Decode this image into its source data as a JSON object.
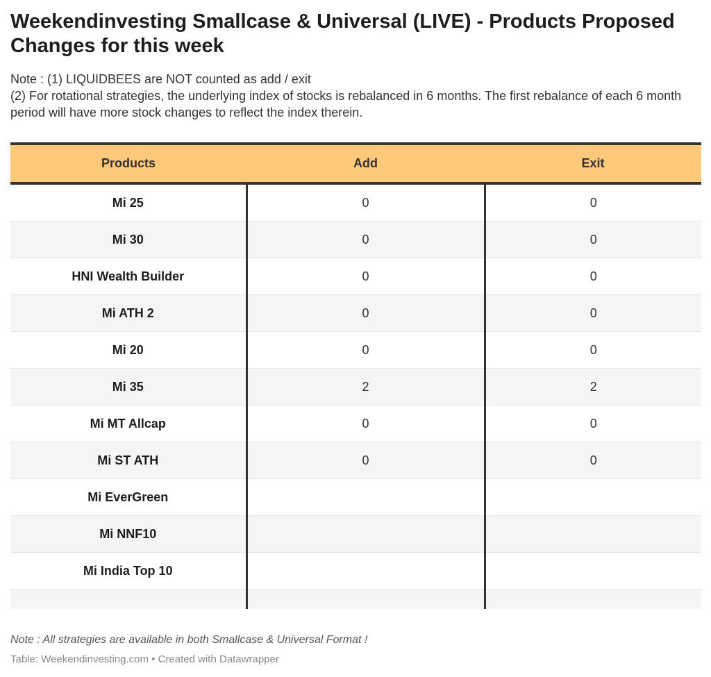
{
  "title": "Weekendinvesting Smallcase & Universal (LIVE) - Products Proposed Changes for this week",
  "notes": [
    "Note : (1) LIQUIDBEES are NOT counted as add / exit",
    "(2) For rotational strategies, the underlying index of stocks is rebalanced in 6 months. The first rebalance of each 6 month period will have more stock changes to reflect the index therein."
  ],
  "table": {
    "headers": [
      "Products",
      "Add",
      "Exit"
    ],
    "header_color": "#fec97a",
    "rows": [
      {
        "product": "Mi 25",
        "add": "0",
        "exit": "0"
      },
      {
        "product": "Mi 30",
        "add": "0",
        "exit": "0"
      },
      {
        "product": "HNI Wealth Builder",
        "add": "0",
        "exit": "0"
      },
      {
        "product": "Mi ATH 2",
        "add": "0",
        "exit": "0"
      },
      {
        "product": "Mi 20",
        "add": "0",
        "exit": "0"
      },
      {
        "product": "Mi 35",
        "add": "2",
        "exit": "2"
      },
      {
        "product": "Mi MT Allcap",
        "add": "0",
        "exit": "0"
      },
      {
        "product": "Mi ST ATH",
        "add": "0",
        "exit": "0"
      },
      {
        "product": "Mi EverGreen",
        "add": "",
        "exit": ""
      },
      {
        "product": "Mi NNF10",
        "add": "",
        "exit": ""
      },
      {
        "product": "Mi India Top 10",
        "add": "",
        "exit": ""
      }
    ]
  },
  "footer": {
    "note": "Note : All strategies are available in both Smallcase & Universal Format !",
    "source": "Table: Weekendinvesting.com • Created with Datawrapper"
  }
}
